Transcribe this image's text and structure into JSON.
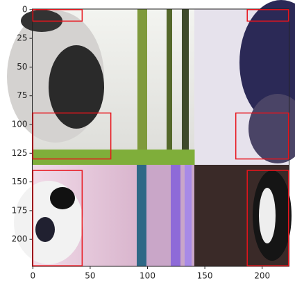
{
  "chart_data": {
    "type": "image",
    "xlim": [
      -0.5,
      223.5
    ],
    "ylim": [
      223.5,
      -0.5
    ],
    "xticks": [
      0,
      50,
      100,
      150,
      200
    ],
    "yticks": [
      0,
      25,
      50,
      75,
      100,
      125,
      150,
      175,
      200
    ],
    "box_color": "#e8141c",
    "boxes": [
      [
        0,
        0,
        43,
        10
      ],
      [
        187,
        0,
        223,
        10
      ],
      [
        0,
        90,
        68,
        130
      ],
      [
        177,
        90,
        223,
        130
      ],
      [
        0,
        140,
        43,
        223
      ],
      [
        187,
        140,
        223,
        223
      ]
    ]
  }
}
